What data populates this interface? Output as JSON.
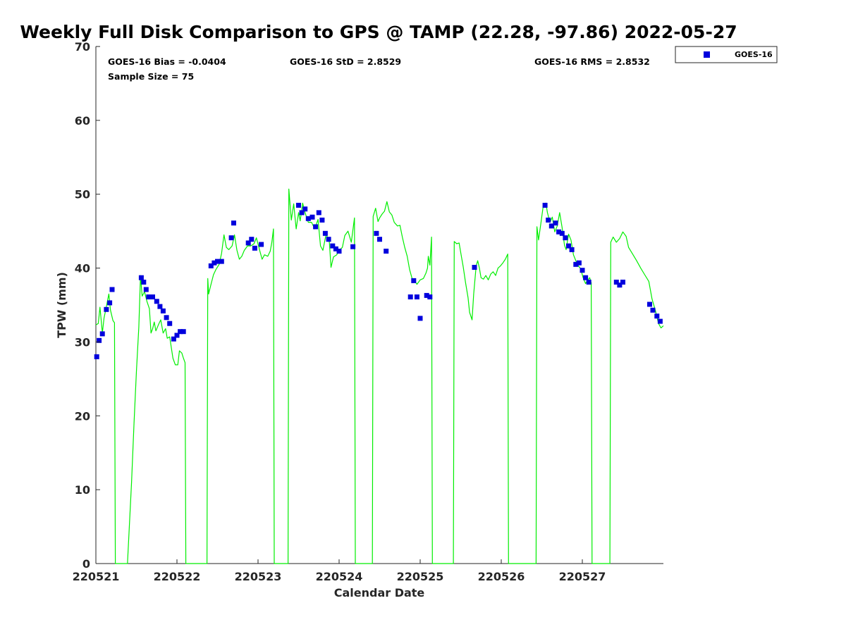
{
  "chart_data": {
    "type": "scatter",
    "title": "Weekly Full Disk Comparison to GPS @ TAMP (22.28, -97.86) 2022-05-27",
    "xlabel": "Calendar Date",
    "ylabel": "TPW (mm)",
    "xlim": [
      0,
      7
    ],
    "ylim": [
      0,
      70
    ],
    "x_tick_values": [
      0,
      1,
      2,
      3,
      4,
      5,
      6
    ],
    "x_tick_labels": [
      "220521",
      "220522",
      "220523",
      "220524",
      "220525",
      "220526",
      "220527"
    ],
    "y_tick_values": [
      0,
      10,
      20,
      30,
      40,
      50,
      60,
      70
    ],
    "y_tick_labels": [
      "0",
      "10",
      "20",
      "30",
      "40",
      "50",
      "60",
      "70"
    ],
    "x_unit": "days since 220521 00:00",
    "grid": false,
    "legend_position": "outside-top-right",
    "legend_entries": [
      "GOES-16"
    ],
    "stats": {
      "bias": "GOES-16 Bias = -0.0404",
      "std": "GOES-16 StD = 2.8529",
      "rms": "GOES-16 RMS = 2.8532",
      "sample": "Sample Size = 75"
    },
    "series": [
      {
        "name": "GOES-16",
        "kind": "scatter",
        "color": "#0000dd",
        "points": [
          [
            0.01,
            28.0
          ],
          [
            0.04,
            30.2
          ],
          [
            0.08,
            31.1
          ],
          [
            0.13,
            34.4
          ],
          [
            0.17,
            35.3
          ],
          [
            0.2,
            37.1
          ],
          [
            0.56,
            38.7
          ],
          [
            0.59,
            38.1
          ],
          [
            0.62,
            37.1
          ],
          [
            0.65,
            36.1
          ],
          [
            0.7,
            36.1
          ],
          [
            0.75,
            35.5
          ],
          [
            0.79,
            34.8
          ],
          [
            0.83,
            34.2
          ],
          [
            0.87,
            33.3
          ],
          [
            0.91,
            32.5
          ],
          [
            0.96,
            30.4
          ],
          [
            1.0,
            30.9
          ],
          [
            1.04,
            31.4
          ],
          [
            1.08,
            31.4
          ],
          [
            1.42,
            40.3
          ],
          [
            1.46,
            40.7
          ],
          [
            1.5,
            40.9
          ],
          [
            1.55,
            40.9
          ],
          [
            1.67,
            44.1
          ],
          [
            1.7,
            46.1
          ],
          [
            1.88,
            43.4
          ],
          [
            1.92,
            43.9
          ],
          [
            1.96,
            42.7
          ],
          [
            2.04,
            43.2
          ],
          [
            2.5,
            48.5
          ],
          [
            2.54,
            47.5
          ],
          [
            2.58,
            48.0
          ],
          [
            2.62,
            46.7
          ],
          [
            2.67,
            46.9
          ],
          [
            2.71,
            45.6
          ],
          [
            2.75,
            47.5
          ],
          [
            2.79,
            46.5
          ],
          [
            2.83,
            44.7
          ],
          [
            2.87,
            43.9
          ],
          [
            2.92,
            43.0
          ],
          [
            2.96,
            42.6
          ],
          [
            3.0,
            42.3
          ],
          [
            3.17,
            42.9
          ],
          [
            3.46,
            44.7
          ],
          [
            3.5,
            43.9
          ],
          [
            3.58,
            42.3
          ],
          [
            3.88,
            36.1
          ],
          [
            3.92,
            38.3
          ],
          [
            3.96,
            36.1
          ],
          [
            4.0,
            33.2
          ],
          [
            4.08,
            36.3
          ],
          [
            4.12,
            36.1
          ],
          [
            4.67,
            40.1
          ],
          [
            5.54,
            48.5
          ],
          [
            5.58,
            46.5
          ],
          [
            5.62,
            45.7
          ],
          [
            5.67,
            46.1
          ],
          [
            5.71,
            44.9
          ],
          [
            5.75,
            44.7
          ],
          [
            5.79,
            44.1
          ],
          [
            5.83,
            43.0
          ],
          [
            5.87,
            42.5
          ],
          [
            5.92,
            40.5
          ],
          [
            5.96,
            40.7
          ],
          [
            6.0,
            39.7
          ],
          [
            6.04,
            38.7
          ],
          [
            6.08,
            38.1
          ],
          [
            6.42,
            38.1
          ],
          [
            6.46,
            37.7
          ],
          [
            6.5,
            38.1
          ],
          [
            6.83,
            35.1
          ],
          [
            6.87,
            34.3
          ],
          [
            6.92,
            33.5
          ],
          [
            6.96,
            32.8
          ]
        ]
      },
      {
        "name": "",
        "kind": "line",
        "color": "#00ee00",
        "points": [
          [
            0.0,
            32.3
          ],
          [
            0.03,
            32.5
          ],
          [
            0.05,
            34.7
          ],
          [
            0.08,
            31.2
          ],
          [
            0.1,
            33.2
          ],
          [
            0.13,
            34.8
          ],
          [
            0.16,
            36.5
          ],
          [
            0.18,
            34.3
          ],
          [
            0.21,
            32.9
          ],
          [
            0.23,
            32.6
          ],
          [
            0.24,
            0.0
          ],
          [
            0.39,
            0.0
          ],
          [
            0.44,
            11.0
          ],
          [
            0.47,
            19.0
          ],
          [
            0.5,
            26.0
          ],
          [
            0.53,
            32.0
          ],
          [
            0.55,
            39.0
          ],
          [
            0.57,
            36.2
          ],
          [
            0.6,
            36.8
          ],
          [
            0.63,
            35.5
          ],
          [
            0.66,
            34.5
          ],
          [
            0.68,
            31.2
          ],
          [
            0.7,
            31.8
          ],
          [
            0.72,
            32.7
          ],
          [
            0.74,
            31.5
          ],
          [
            0.77,
            32.3
          ],
          [
            0.8,
            33.0
          ],
          [
            0.83,
            31.2
          ],
          [
            0.86,
            31.8
          ],
          [
            0.88,
            30.5
          ],
          [
            0.91,
            30.7
          ],
          [
            0.93,
            29.3
          ],
          [
            0.95,
            27.8
          ],
          [
            0.98,
            26.9
          ],
          [
            1.01,
            26.9
          ],
          [
            1.03,
            28.8
          ],
          [
            1.06,
            28.5
          ],
          [
            1.08,
            27.8
          ],
          [
            1.1,
            27.2
          ],
          [
            1.11,
            0.0
          ],
          [
            1.37,
            0.0
          ],
          [
            1.38,
            38.6
          ],
          [
            1.39,
            36.5
          ],
          [
            1.42,
            37.8
          ],
          [
            1.45,
            39.1
          ],
          [
            1.48,
            39.8
          ],
          [
            1.52,
            40.5
          ],
          [
            1.55,
            42.0
          ],
          [
            1.58,
            44.5
          ],
          [
            1.61,
            42.8
          ],
          [
            1.64,
            42.5
          ],
          [
            1.68,
            43.0
          ],
          [
            1.71,
            44.5
          ],
          [
            1.74,
            42.4
          ],
          [
            1.77,
            41.2
          ],
          [
            1.8,
            41.6
          ],
          [
            1.83,
            42.4
          ],
          [
            1.87,
            43.0
          ],
          [
            1.91,
            43.0
          ],
          [
            1.95,
            43.3
          ],
          [
            1.98,
            44.1
          ],
          [
            2.02,
            42.4
          ],
          [
            2.05,
            41.2
          ],
          [
            2.08,
            41.8
          ],
          [
            2.12,
            41.6
          ],
          [
            2.15,
            42.3
          ],
          [
            2.17,
            43.5
          ],
          [
            2.19,
            45.3
          ],
          [
            2.2,
            0.0
          ],
          [
            2.37,
            0.0
          ],
          [
            2.38,
            50.7
          ],
          [
            2.41,
            46.5
          ],
          [
            2.44,
            48.7
          ],
          [
            2.47,
            45.3
          ],
          [
            2.5,
            47.5
          ],
          [
            2.52,
            46.4
          ],
          [
            2.55,
            48.8
          ],
          [
            2.58,
            47.5
          ],
          [
            2.62,
            46.2
          ],
          [
            2.66,
            46.2
          ],
          [
            2.7,
            45.3
          ],
          [
            2.74,
            46.6
          ],
          [
            2.77,
            43.0
          ],
          [
            2.8,
            42.4
          ],
          [
            2.84,
            44.6
          ],
          [
            2.88,
            43.5
          ],
          [
            2.9,
            40.1
          ],
          [
            2.93,
            41.5
          ],
          [
            2.97,
            41.8
          ],
          [
            3.0,
            42.4
          ],
          [
            3.04,
            42.8
          ],
          [
            3.07,
            44.4
          ],
          [
            3.11,
            45.0
          ],
          [
            3.15,
            43.5
          ],
          [
            3.19,
            46.8
          ],
          [
            3.2,
            0.0
          ],
          [
            3.41,
            0.0
          ],
          [
            3.42,
            47.0
          ],
          [
            3.45,
            48.1
          ],
          [
            3.48,
            46.3
          ],
          [
            3.5,
            46.8
          ],
          [
            3.53,
            47.3
          ],
          [
            3.56,
            47.7
          ],
          [
            3.59,
            49.0
          ],
          [
            3.62,
            47.6
          ],
          [
            3.65,
            47.2
          ],
          [
            3.68,
            46.2
          ],
          [
            3.72,
            45.7
          ],
          [
            3.75,
            45.8
          ],
          [
            3.78,
            44.2
          ],
          [
            3.81,
            42.8
          ],
          [
            3.84,
            41.6
          ],
          [
            3.87,
            39.8
          ],
          [
            3.9,
            38.6
          ],
          [
            3.93,
            38.3
          ],
          [
            3.96,
            37.8
          ],
          [
            4.0,
            38.4
          ],
          [
            4.04,
            38.6
          ],
          [
            4.07,
            39.3
          ],
          [
            4.09,
            40.0
          ],
          [
            4.1,
            41.6
          ],
          [
            4.12,
            40.4
          ],
          [
            4.14,
            44.2
          ],
          [
            4.15,
            0.0
          ],
          [
            4.41,
            0.0
          ],
          [
            4.42,
            43.6
          ],
          [
            4.45,
            43.3
          ],
          [
            4.48,
            43.4
          ],
          [
            4.51,
            41.5
          ],
          [
            4.53,
            40.2
          ],
          [
            4.56,
            38.0
          ],
          [
            4.59,
            36.0
          ],
          [
            4.61,
            34.0
          ],
          [
            4.64,
            33.0
          ],
          [
            4.66,
            36.5
          ],
          [
            4.69,
            40.3
          ],
          [
            4.71,
            41.0
          ],
          [
            4.73,
            40.0
          ],
          [
            4.75,
            38.7
          ],
          [
            4.78,
            38.5
          ],
          [
            4.81,
            39.0
          ],
          [
            4.84,
            38.4
          ],
          [
            4.87,
            39.2
          ],
          [
            4.9,
            39.5
          ],
          [
            4.93,
            39.0
          ],
          [
            4.96,
            40.0
          ],
          [
            4.99,
            40.3
          ],
          [
            5.02,
            40.7
          ],
          [
            5.05,
            41.2
          ],
          [
            5.08,
            41.9
          ],
          [
            5.09,
            0.0
          ],
          [
            5.43,
            0.0
          ],
          [
            5.44,
            45.6
          ],
          [
            5.46,
            43.8
          ],
          [
            5.49,
            46.2
          ],
          [
            5.52,
            48.6
          ],
          [
            5.55,
            48.8
          ],
          [
            5.57,
            47.5
          ],
          [
            5.6,
            46.2
          ],
          [
            5.63,
            46.9
          ],
          [
            5.66,
            44.9
          ],
          [
            5.69,
            45.7
          ],
          [
            5.72,
            47.5
          ],
          [
            5.75,
            45.5
          ],
          [
            5.78,
            43.1
          ],
          [
            5.8,
            42.5
          ],
          [
            5.83,
            44.6
          ],
          [
            5.86,
            43.8
          ],
          [
            5.89,
            41.8
          ],
          [
            5.92,
            41.0
          ],
          [
            5.95,
            40.3
          ],
          [
            5.98,
            39.9
          ],
          [
            6.01,
            38.7
          ],
          [
            6.04,
            37.9
          ],
          [
            6.06,
            38.3
          ],
          [
            6.09,
            38.7
          ],
          [
            6.11,
            38.0
          ],
          [
            6.12,
            0.0
          ],
          [
            6.34,
            0.0
          ],
          [
            6.35,
            43.5
          ],
          [
            6.38,
            44.2
          ],
          [
            6.42,
            43.5
          ],
          [
            6.46,
            44.0
          ],
          [
            6.5,
            44.9
          ],
          [
            6.54,
            44.3
          ],
          [
            6.57,
            42.8
          ],
          [
            6.62,
            41.9
          ],
          [
            6.67,
            41.0
          ],
          [
            6.72,
            40.0
          ],
          [
            6.77,
            39.1
          ],
          [
            6.82,
            38.2
          ],
          [
            6.86,
            35.8
          ],
          [
            6.9,
            34.3
          ],
          [
            6.94,
            32.5
          ],
          [
            6.97,
            31.9
          ],
          [
            7.0,
            32.2
          ]
        ]
      }
    ]
  }
}
